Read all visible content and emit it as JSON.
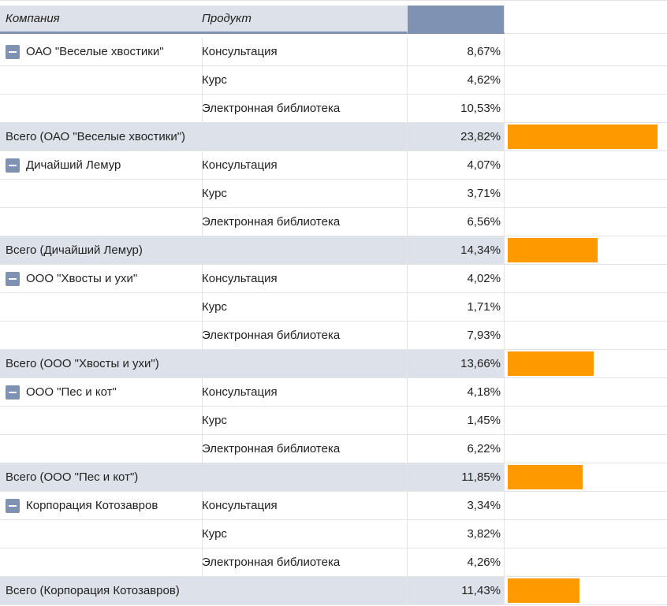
{
  "headers": {
    "company": "Компания",
    "product": "Продукт",
    "value": "",
    "bar": ""
  },
  "bar_color": "#ff9900",
  "header_accent": "#7f92b4",
  "groups": [
    {
      "company": "ОАО \"Веселые хвостики\"",
      "rows": [
        {
          "product": "Консультация",
          "value": "8,67%"
        },
        {
          "product": "Курс",
          "value": "4,62%"
        },
        {
          "product": "Электронная библиотека",
          "value": "10,53%"
        }
      ],
      "total_label": "Всего (ОАО \"Веселые хвостики\")",
      "total_value": "23,82%",
      "total_number": 23.82
    },
    {
      "company": "Дичайший Лемур",
      "rows": [
        {
          "product": "Консультация",
          "value": "4,07%"
        },
        {
          "product": "Курс",
          "value": "3,71%"
        },
        {
          "product": "Электронная библиотека",
          "value": "6,56%"
        }
      ],
      "total_label": "Всего (Дичайший Лемур)",
      "total_value": "14,34%",
      "total_number": 14.34
    },
    {
      "company": "ООО \"Хвосты и ухи\"",
      "rows": [
        {
          "product": "Консультация",
          "value": "4,02%"
        },
        {
          "product": "Курс",
          "value": "1,71%"
        },
        {
          "product": "Электронная библиотека",
          "value": "7,93%"
        }
      ],
      "total_label": "Всего (ООО \"Хвосты и ухи\")",
      "total_value": "13,66%",
      "total_number": 13.66
    },
    {
      "company": "ООО \"Пес и кот\"",
      "rows": [
        {
          "product": "Консультация",
          "value": "4,18%"
        },
        {
          "product": "Курс",
          "value": "1,45%"
        },
        {
          "product": "Электронная библиотека",
          "value": "6,22%"
        }
      ],
      "total_label": "Всего (ООО \"Пес и кот\")",
      "total_value": "11,85%",
      "total_number": 11.85
    },
    {
      "company": "Корпорация Котозавров",
      "rows": [
        {
          "product": "Консультация",
          "value": "3,34%"
        },
        {
          "product": "Курс",
          "value": "3,82%"
        },
        {
          "product": "Электронная библиотека",
          "value": "4,26%"
        }
      ],
      "total_label": "Всего (Корпорация Котозавров)",
      "total_value": "11,43%",
      "total_number": 11.43
    }
  ]
}
